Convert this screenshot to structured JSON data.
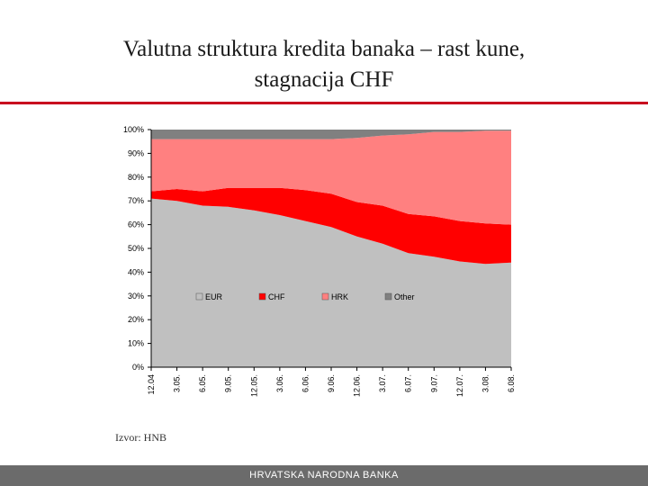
{
  "slide": {
    "title_line1": "Valutna struktura kredita banaka – rast kune,",
    "title_line2": "stagnacija CHF",
    "source": "Izvor: HNB",
    "footer": "HRVATSKA NARODNA BANKA"
  },
  "colors": {
    "accent": "#c8001e",
    "EUR": "#c0c0c0",
    "CHF": "#ff0000",
    "HRK": "#ff8080",
    "Other": "#808080",
    "footer": "#6b6b6b"
  },
  "chart_data": {
    "type": "area",
    "stacked": "percent",
    "x": [
      "12.04",
      "3.05.",
      "6.05.",
      "9.05.",
      "12.05.",
      "3.06.",
      "6.06.",
      "9.06.",
      "12.06.",
      "3.07.",
      "6.07.",
      "9.07.",
      "12.07.",
      "3.08.",
      "6.08."
    ],
    "ylim": [
      0,
      100
    ],
    "yticks": [
      0,
      10,
      20,
      30,
      40,
      50,
      60,
      70,
      80,
      90,
      100
    ],
    "ytick_labels": [
      "0%",
      "10%",
      "20%",
      "30%",
      "40%",
      "50%",
      "60%",
      "70%",
      "80%",
      "90%",
      "100%"
    ],
    "legend_position": "inside-center",
    "grid": false,
    "series": [
      {
        "name": "EUR",
        "values": [
          71,
          70,
          68,
          67.5,
          66,
          64,
          61.5,
          59,
          55,
          52,
          48,
          46.5,
          44.5,
          43.5,
          44
        ]
      },
      {
        "name": "CHF",
        "values": [
          3,
          5,
          6,
          8,
          9.5,
          11.5,
          13,
          14,
          14.5,
          16,
          16.5,
          17,
          17,
          17,
          16
        ]
      },
      {
        "name": "HRK",
        "values": [
          22,
          21,
          22,
          20.5,
          20.5,
          20.5,
          21.5,
          23,
          27,
          29.5,
          33.5,
          35.5,
          37.5,
          39,
          39.5
        ]
      },
      {
        "name": "Other",
        "values": [
          4,
          4,
          4,
          4,
          4,
          4,
          4,
          4,
          3.5,
          2.5,
          2,
          1,
          1,
          0.5,
          0.5
        ]
      }
    ]
  }
}
